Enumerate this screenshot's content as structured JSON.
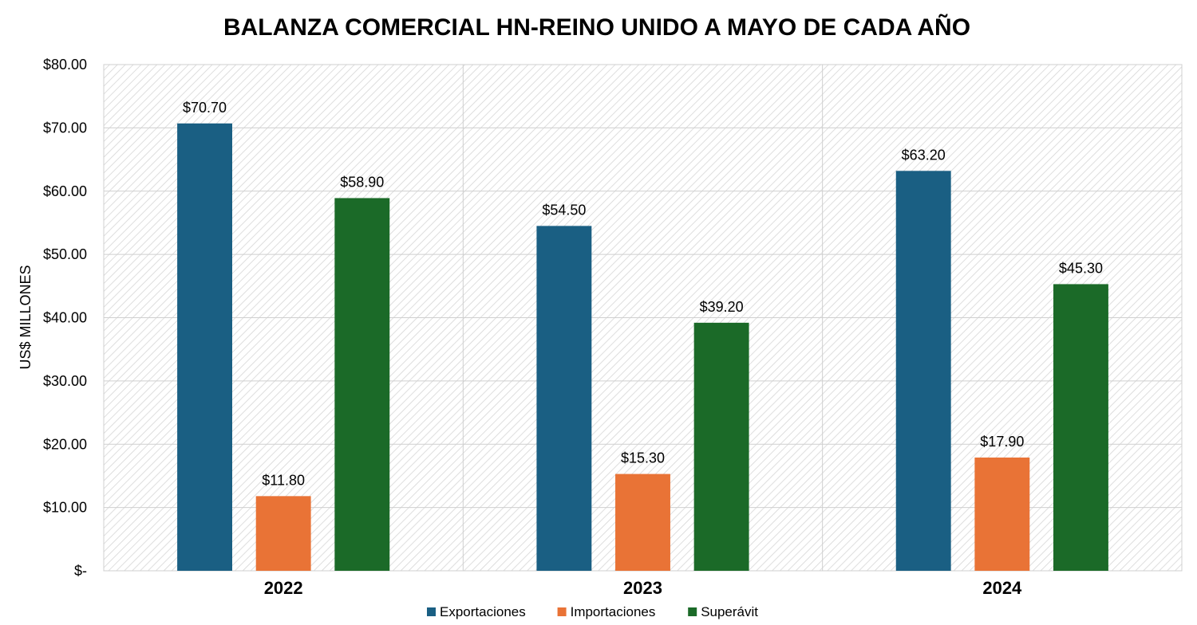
{
  "chart_data": {
    "type": "bar",
    "title": "BALANZA COMERCIAL HN-REINO UNIDO A MAYO DE CADA AÑO",
    "xlabel": "",
    "ylabel": "US$ MILLONES",
    "categories": [
      "2022",
      "2023",
      "2024"
    ],
    "series": [
      {
        "name": "Exportaciones",
        "values": [
          70.7,
          54.5,
          63.2
        ],
        "color": "#1a5f83",
        "labels": [
          "$70.70",
          "$54.50",
          "$63.20"
        ]
      },
      {
        "name": "Importaciones",
        "values": [
          11.8,
          15.3,
          17.9
        ],
        "color": "#e97336",
        "labels": [
          "$11.80",
          "$15.30",
          "$17.90"
        ]
      },
      {
        "name": "Superávit",
        "values": [
          58.9,
          39.2,
          45.3
        ],
        "color": "#1b6a28",
        "labels": [
          "$58.90",
          "$39.20",
          "$45.30"
        ]
      }
    ],
    "ylim": [
      0,
      80
    ],
    "yticks": [
      0,
      10,
      20,
      30,
      40,
      50,
      60,
      70,
      80
    ],
    "ytick_labels": [
      "$-",
      "$10.00",
      "$20.00",
      "$30.00",
      "$40.00",
      "$50.00",
      "$60.00",
      "$70.00",
      "$80.00"
    ],
    "grid": true,
    "legend_position": "bottom",
    "plot_background": "diagonal-hatch"
  }
}
